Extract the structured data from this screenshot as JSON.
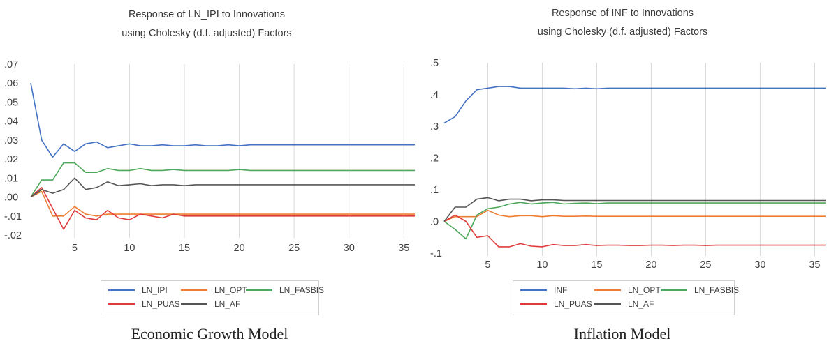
{
  "colors": {
    "LN_IPI": "#4472c4",
    "INF": "#4472c4",
    "LN_OPT": "#ed7d31",
    "LN_FASBIS": "#4ea75a",
    "LN_PUAS": "#e03c3c",
    "LN_AF": "#555555"
  },
  "captions": {
    "left": "Economic Growth Model",
    "right": "Inflation Model"
  },
  "chart_data": [
    {
      "type": "line",
      "title": "Response of LN_IPI to Innovations",
      "subtitle": "using Cholesky (d.f. adjusted) Factors",
      "xlabel": "",
      "ylabel": "",
      "xlim": [
        1,
        36
      ],
      "ylim": [
        -0.02,
        0.07
      ],
      "y_ticks": [
        ".07",
        ".06",
        ".05",
        ".04",
        ".03",
        ".02",
        ".01",
        ".00",
        "-.01",
        "-.02"
      ],
      "x_ticks": [
        "5",
        "10",
        "15",
        "20",
        "25",
        "30",
        "35"
      ],
      "grid": "vertical",
      "legend": "bottom",
      "x": [
        1,
        2,
        3,
        4,
        5,
        6,
        7,
        8,
        9,
        10,
        11,
        12,
        13,
        14,
        15,
        16,
        17,
        18,
        19,
        20,
        21,
        22,
        23,
        24,
        25,
        26,
        27,
        28,
        29,
        30,
        31,
        32,
        33,
        34,
        35,
        36
      ],
      "series": [
        {
          "name": "LN_IPI",
          "values": [
            0.06,
            0.03,
            0.021,
            0.028,
            0.024,
            0.028,
            0.029,
            0.026,
            0.027,
            0.028,
            0.027,
            0.027,
            0.0275,
            0.027,
            0.027,
            0.0275,
            0.027,
            0.027,
            0.0275,
            0.027,
            0.0275,
            0.0275,
            0.0275,
            0.0275,
            0.0275,
            0.0275,
            0.0275,
            0.0275,
            0.0275,
            0.0275,
            0.0275,
            0.0275,
            0.0275,
            0.0275,
            0.0275,
            0.0275
          ]
        },
        {
          "name": "LN_OPT",
          "values": [
            0.0,
            0.003,
            -0.01,
            -0.01,
            -0.005,
            -0.009,
            -0.01,
            -0.009,
            -0.009,
            -0.009,
            -0.009,
            -0.009,
            -0.009,
            -0.009,
            -0.009,
            -0.009,
            -0.009,
            -0.009,
            -0.009,
            -0.009,
            -0.009,
            -0.009,
            -0.009,
            -0.009,
            -0.009,
            -0.009,
            -0.009,
            -0.009,
            -0.009,
            -0.009,
            -0.009,
            -0.009,
            -0.009,
            -0.009,
            -0.009,
            -0.009
          ]
        },
        {
          "name": "LN_FASBIS",
          "values": [
            0.0,
            0.009,
            0.009,
            0.018,
            0.018,
            0.013,
            0.013,
            0.015,
            0.014,
            0.014,
            0.015,
            0.014,
            0.014,
            0.0145,
            0.014,
            0.014,
            0.014,
            0.014,
            0.014,
            0.0145,
            0.014,
            0.014,
            0.014,
            0.014,
            0.014,
            0.014,
            0.014,
            0.014,
            0.014,
            0.014,
            0.014,
            0.014,
            0.014,
            0.014,
            0.014,
            0.014
          ]
        },
        {
          "name": "LN_PUAS",
          "values": [
            0.0,
            0.005,
            -0.006,
            -0.017,
            -0.007,
            -0.011,
            -0.012,
            -0.007,
            -0.011,
            -0.012,
            -0.009,
            -0.01,
            -0.011,
            -0.009,
            -0.01,
            -0.01,
            -0.01,
            -0.01,
            -0.01,
            -0.01,
            -0.01,
            -0.01,
            -0.01,
            -0.01,
            -0.01,
            -0.01,
            -0.01,
            -0.01,
            -0.01,
            -0.01,
            -0.01,
            -0.01,
            -0.01,
            -0.01,
            -0.01,
            -0.01
          ]
        },
        {
          "name": "LN_AF",
          "values": [
            0.0,
            0.004,
            0.002,
            0.004,
            0.01,
            0.004,
            0.005,
            0.008,
            0.006,
            0.0065,
            0.007,
            0.006,
            0.0065,
            0.0065,
            0.006,
            0.0065,
            0.0065,
            0.0065,
            0.0065,
            0.0065,
            0.0065,
            0.0065,
            0.0065,
            0.0065,
            0.0065,
            0.0065,
            0.0065,
            0.0065,
            0.0065,
            0.0065,
            0.0065,
            0.0065,
            0.0065,
            0.0065,
            0.0065,
            0.0065
          ]
        }
      ]
    },
    {
      "type": "line",
      "title": "Response of INF to Innovations",
      "subtitle": "using Cholesky (d.f. adjusted) Factors",
      "xlabel": "",
      "ylabel": "",
      "xlim": [
        1,
        36
      ],
      "ylim": [
        -0.1,
        0.5
      ],
      "y_ticks": [
        ".5",
        ".4",
        ".3",
        ".2",
        ".1",
        ".0",
        "-.1"
      ],
      "x_ticks": [
        "5",
        "10",
        "15",
        "20",
        "25",
        "30",
        "35"
      ],
      "grid": "vertical",
      "legend": "bottom",
      "x": [
        1,
        2,
        3,
        4,
        5,
        6,
        7,
        8,
        9,
        10,
        11,
        12,
        13,
        14,
        15,
        16,
        17,
        18,
        19,
        20,
        21,
        22,
        23,
        24,
        25,
        26,
        27,
        28,
        29,
        30,
        31,
        32,
        33,
        34,
        35,
        36
      ],
      "series": [
        {
          "name": "INF",
          "values": [
            0.31,
            0.33,
            0.38,
            0.415,
            0.42,
            0.425,
            0.425,
            0.42,
            0.42,
            0.42,
            0.42,
            0.42,
            0.418,
            0.42,
            0.418,
            0.42,
            0.42,
            0.42,
            0.42,
            0.42,
            0.42,
            0.42,
            0.42,
            0.42,
            0.42,
            0.42,
            0.42,
            0.42,
            0.42,
            0.42,
            0.42,
            0.42,
            0.42,
            0.42,
            0.42,
            0.42
          ]
        },
        {
          "name": "LN_OPT",
          "values": [
            0.0,
            0.015,
            0.015,
            0.015,
            0.035,
            0.02,
            0.015,
            0.018,
            0.018,
            0.015,
            0.018,
            0.016,
            0.016,
            0.017,
            0.016,
            0.016,
            0.016,
            0.016,
            0.016,
            0.016,
            0.016,
            0.016,
            0.016,
            0.016,
            0.016,
            0.016,
            0.016,
            0.016,
            0.016,
            0.016,
            0.016,
            0.016,
            0.016,
            0.016,
            0.016,
            0.016
          ]
        },
        {
          "name": "LN_FASBIS",
          "values": [
            0.0,
            -0.025,
            -0.055,
            0.02,
            0.04,
            0.045,
            0.055,
            0.06,
            0.055,
            0.058,
            0.06,
            0.055,
            0.057,
            0.058,
            0.056,
            0.058,
            0.058,
            0.058,
            0.058,
            0.058,
            0.058,
            0.058,
            0.058,
            0.058,
            0.058,
            0.058,
            0.058,
            0.058,
            0.058,
            0.058,
            0.058,
            0.058,
            0.058,
            0.058,
            0.058,
            0.058
          ]
        },
        {
          "name": "LN_PUAS",
          "values": [
            0.0,
            0.02,
            0.0,
            -0.05,
            -0.045,
            -0.08,
            -0.08,
            -0.07,
            -0.078,
            -0.08,
            -0.073,
            -0.076,
            -0.076,
            -0.073,
            -0.076,
            -0.075,
            -0.075,
            -0.076,
            -0.076,
            -0.075,
            -0.075,
            -0.076,
            -0.075,
            -0.075,
            -0.076,
            -0.075,
            -0.075,
            -0.075,
            -0.075,
            -0.075,
            -0.075,
            -0.075,
            -0.075,
            -0.075,
            -0.075,
            -0.075
          ]
        },
        {
          "name": "LN_AF",
          "values": [
            0.0,
            0.045,
            0.045,
            0.07,
            0.075,
            0.065,
            0.07,
            0.07,
            0.065,
            0.068,
            0.068,
            0.066,
            0.066,
            0.066,
            0.066,
            0.066,
            0.066,
            0.066,
            0.066,
            0.066,
            0.066,
            0.066,
            0.066,
            0.066,
            0.066,
            0.066,
            0.066,
            0.066,
            0.066,
            0.066,
            0.066,
            0.066,
            0.066,
            0.066,
            0.066,
            0.066
          ]
        }
      ]
    }
  ]
}
